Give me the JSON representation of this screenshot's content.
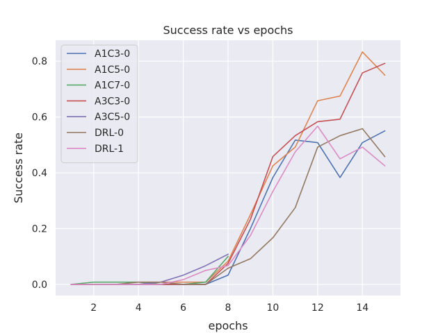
{
  "chart_data": {
    "type": "line",
    "title": "Success rate vs epochs",
    "xlabel": "epochs",
    "ylabel": "Success rate",
    "xlim": [
      0.3,
      15.7
    ],
    "ylim": [
      -0.04,
      0.875
    ],
    "xticks": [
      2,
      4,
      6,
      8,
      10,
      12,
      14
    ],
    "yticks": [
      0.0,
      0.2,
      0.4,
      0.6,
      0.8
    ],
    "grid": true,
    "legend_position": "top-left",
    "x": [
      1,
      2,
      3,
      4,
      5,
      6,
      7,
      8,
      9,
      10,
      11,
      12,
      13,
      14,
      15
    ],
    "series": [
      {
        "name": "A1C3-0",
        "color": "#4c72b0",
        "x": [
          1,
          2,
          3,
          4,
          5,
          6,
          7,
          8,
          9,
          10,
          11,
          12,
          13,
          14,
          15
        ],
        "values": [
          0.0,
          0.0,
          0.0,
          0.0,
          0.0,
          0.0,
          0.0,
          0.033,
          0.2,
          0.383,
          0.517,
          0.508,
          0.383,
          0.508,
          0.55
        ]
      },
      {
        "name": "A1C5-0",
        "color": "#dd8452",
        "x": [
          1,
          2,
          3,
          4,
          5,
          6,
          7,
          8,
          9,
          10,
          11,
          12,
          13,
          14,
          15
        ],
        "values": [
          0.0,
          0.0,
          0.0,
          0.0,
          0.008,
          0.008,
          0.008,
          0.083,
          0.25,
          0.425,
          0.492,
          0.658,
          0.675,
          0.833,
          0.75
        ]
      },
      {
        "name": "A1C7-0",
        "color": "#55a868",
        "x": [
          1,
          2,
          3,
          4,
          5,
          6,
          7,
          8
        ],
        "values": [
          0.0,
          0.008,
          0.008,
          0.008,
          0.0,
          0.0,
          0.008,
          0.1
        ]
      },
      {
        "name": "A3C3-0",
        "color": "#c44e52",
        "x": [
          1,
          2,
          3,
          4,
          5,
          6,
          7,
          8,
          9,
          10,
          11,
          12,
          13,
          14,
          15
        ],
        "values": [
          0.0,
          0.0,
          0.0,
          0.0,
          0.0,
          0.0,
          0.0,
          0.075,
          0.233,
          0.458,
          0.533,
          0.583,
          0.592,
          0.758,
          0.792
        ]
      },
      {
        "name": "A3C5-0",
        "color": "#8172b3",
        "x": [
          1,
          2,
          3,
          4,
          5,
          6,
          7,
          8
        ],
        "values": [
          0.0,
          0.0,
          0.0,
          0.0,
          0.008,
          0.033,
          0.067,
          0.108
        ]
      },
      {
        "name": "DRL-0",
        "color": "#937860",
        "x": [
          1,
          2,
          3,
          4,
          5,
          6,
          7,
          8,
          9,
          10,
          11,
          12,
          13,
          14,
          15
        ],
        "values": [
          0.0,
          0.0,
          0.0,
          0.008,
          0.008,
          0.0,
          0.0,
          0.058,
          0.092,
          0.167,
          0.275,
          0.492,
          0.533,
          0.558,
          0.458
        ]
      },
      {
        "name": "DRL-1",
        "color": "#da8bc3",
        "x": [
          1,
          2,
          3,
          4,
          5,
          6,
          7,
          8,
          9,
          10,
          11,
          12,
          13,
          14,
          15
        ],
        "values": [
          0.0,
          0.0,
          0.0,
          0.0,
          0.0,
          0.017,
          0.05,
          0.067,
          0.175,
          0.333,
          0.475,
          0.567,
          0.45,
          0.492,
          0.425
        ]
      }
    ]
  }
}
